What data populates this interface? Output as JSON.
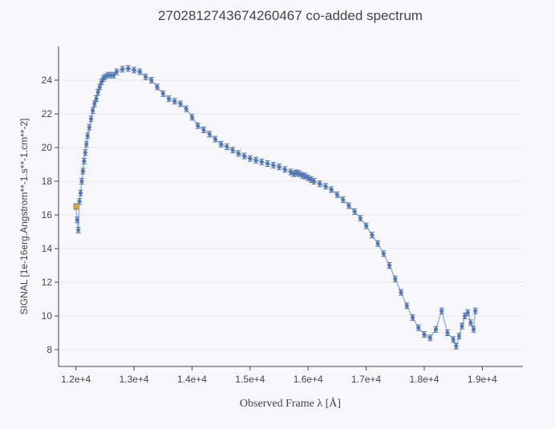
{
  "chart_data": {
    "type": "line",
    "title": "2702812743674260467 co-added spectrum",
    "xlabel": "Observed Frame  λ  [Å]",
    "ylabel": "SIGNAL [1e-16erg.Angstrom**-1.s**-1.cm**-2]",
    "xlim": [
      11700,
      19700
    ],
    "ylim": [
      7.0,
      26.0
    ],
    "xticks": [
      12000,
      13000,
      14000,
      15000,
      16000,
      17000,
      18000,
      19000
    ],
    "xtick_labels": [
      "1.2e+4",
      "1.3e+4",
      "1.4e+4",
      "1.5e+4",
      "1.6e+4",
      "1.7e+4",
      "1.8e+4",
      "1.9e+4"
    ],
    "yticks": [
      8,
      10,
      12,
      14,
      16,
      18,
      20,
      22,
      24
    ],
    "ytick_labels": [
      "8",
      "10",
      "12",
      "14",
      "16",
      "18",
      "20",
      "22",
      "24"
    ],
    "grid": true,
    "series": [
      {
        "color": "#4c72b0",
        "line_color": "#9bb3d6",
        "x": [
          12000,
          12020,
          12040,
          12060,
          12080,
          12100,
          12120,
          12140,
          12160,
          12180,
          12200,
          12230,
          12260,
          12290,
          12320,
          12350,
          12380,
          12410,
          12440,
          12470,
          12500,
          12550,
          12600,
          12650,
          12700,
          12800,
          12900,
          13000,
          13100,
          13200,
          13300,
          13400,
          13500,
          13600,
          13700,
          13800,
          13900,
          14000,
          14100,
          14200,
          14300,
          14400,
          14500,
          14600,
          14700,
          14800,
          14900,
          15000,
          15100,
          15200,
          15300,
          15400,
          15500,
          15600,
          15700,
          15750,
          15800,
          15850,
          15900,
          15950,
          16000,
          16050,
          16100,
          16200,
          16300,
          16400,
          16500,
          16600,
          16700,
          16800,
          16900,
          17000,
          17100,
          17200,
          17300,
          17400,
          17500,
          17600,
          17700,
          17800,
          17900,
          18000,
          18100,
          18200,
          18300,
          18400,
          18500,
          18550,
          18600,
          18650,
          18700,
          18750,
          18800,
          18850,
          18880
        ],
        "y": [
          16.5,
          15.7,
          15.1,
          16.8,
          17.3,
          18.0,
          18.6,
          19.2,
          19.7,
          20.2,
          20.7,
          21.2,
          21.7,
          22.2,
          22.6,
          22.9,
          23.3,
          23.6,
          23.9,
          24.1,
          24.2,
          24.3,
          24.3,
          24.3,
          24.5,
          24.65,
          24.7,
          24.6,
          24.5,
          24.2,
          24.0,
          23.6,
          23.2,
          22.9,
          22.75,
          22.6,
          22.3,
          21.8,
          21.3,
          21.05,
          20.8,
          20.5,
          20.2,
          20.05,
          19.85,
          19.65,
          19.5,
          19.35,
          19.25,
          19.15,
          19.05,
          18.95,
          18.85,
          18.7,
          18.55,
          18.45,
          18.5,
          18.45,
          18.35,
          18.3,
          18.2,
          18.1,
          18.0,
          17.85,
          17.7,
          17.5,
          17.2,
          16.9,
          16.55,
          16.2,
          15.8,
          15.35,
          14.8,
          14.3,
          13.7,
          13.0,
          12.2,
          11.4,
          10.6,
          9.9,
          9.3,
          8.9,
          8.7,
          9.2,
          10.3,
          9.0,
          8.6,
          8.2,
          8.8,
          9.4,
          10.0,
          10.2,
          9.6,
          9.2,
          10.3
        ]
      }
    ],
    "highlight_point": {
      "x": 12000,
      "y": 16.5,
      "color": "#e0a328"
    }
  }
}
